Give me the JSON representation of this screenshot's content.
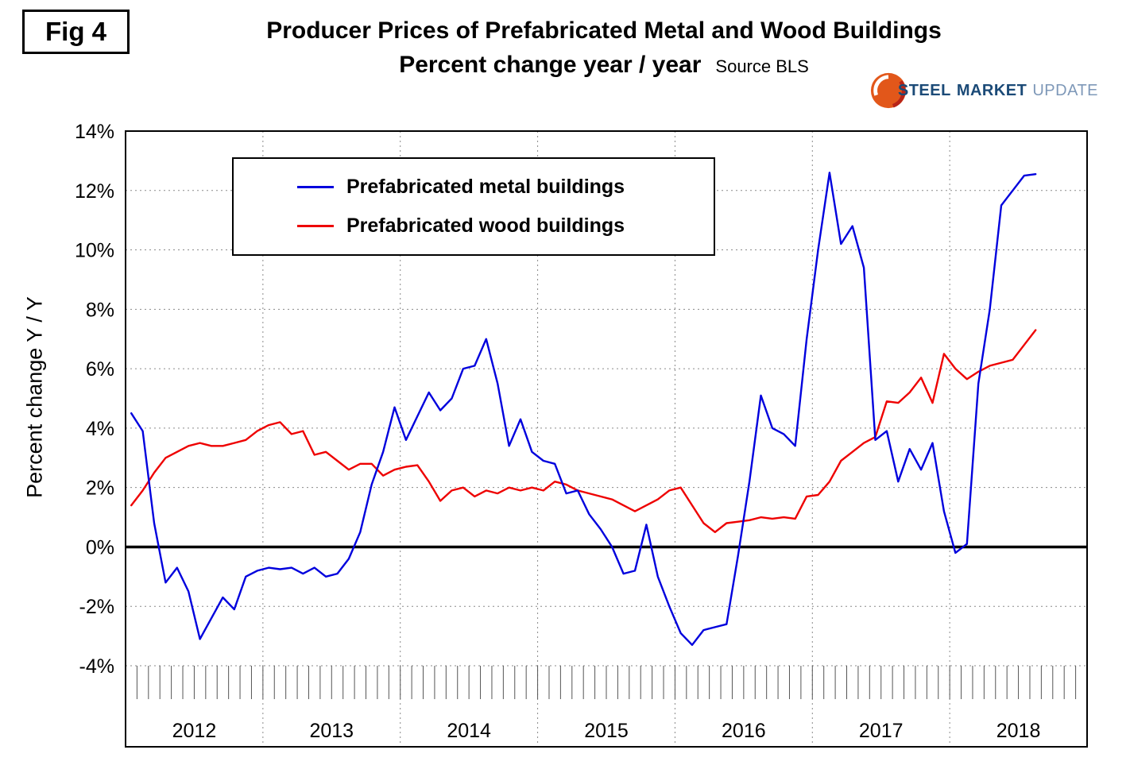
{
  "figure_label": "Fig 4",
  "title": "Producer Prices of Prefabricated Metal and Wood Buildings",
  "subtitle": "Percent change year / year",
  "source": "Source BLS",
  "y_axis_label": "Percent change Y / Y",
  "logo": {
    "steel": "STEEL",
    "market": "MARKET",
    "update": "UPDATE",
    "circle_color": "#e2571a"
  },
  "legend": [
    {
      "label": "Prefabricated metal buildings",
      "color": "#0000dd"
    },
    {
      "label": "Prefabricated wood buildings",
      "color": "#ee0000"
    }
  ],
  "chart_data": {
    "type": "line",
    "title": "Producer Prices of Prefabricated Metal and Wood Buildings",
    "subtitle": "Percent change year / year",
    "source": "Source BLS",
    "ylabel": "Percent change Y / Y",
    "ylim": [
      -4,
      14
    ],
    "y_tick_values": [
      14,
      12,
      10,
      8,
      6,
      4,
      2,
      0,
      -2,
      -4
    ],
    "y_tick_labels": [
      "14%",
      "12%",
      "10%",
      "8%",
      "6%",
      "4%",
      "2%",
      "0%",
      "-2%",
      "-4%"
    ],
    "x_frequency": "monthly",
    "x_range": [
      "2012-01",
      "2018-08"
    ],
    "x_year_labels": [
      "2012",
      "2013",
      "2014",
      "2015",
      "2016",
      "2017",
      "2018"
    ],
    "grid": "dotted",
    "zero_line": true,
    "legend_position": "top-left-inside",
    "series": [
      {
        "name": "Prefabricated metal buildings",
        "color": "#0000dd",
        "values": [
          4.5,
          3.9,
          0.8,
          -1.2,
          -0.7,
          -1.5,
          -3.1,
          -2.4,
          -1.7,
          -2.1,
          -1.0,
          -0.8,
          -0.7,
          -0.75,
          -0.7,
          -0.9,
          -0.7,
          -1.0,
          -0.9,
          -0.4,
          0.5,
          2.1,
          3.2,
          4.7,
          3.6,
          4.4,
          5.2,
          4.6,
          5.0,
          6.0,
          6.1,
          7.0,
          5.5,
          3.4,
          4.3,
          3.2,
          2.9,
          2.8,
          1.8,
          1.9,
          1.1,
          0.6,
          0.0,
          -0.9,
          -0.8,
          0.75,
          -1.0,
          -2.0,
          -2.9,
          -3.3,
          -2.8,
          -2.7,
          -2.6,
          -0.3,
          2.2,
          5.1,
          4.0,
          3.8,
          3.4,
          7.0,
          10.0,
          12.6,
          10.2,
          10.8,
          9.4,
          3.6,
          3.9,
          2.2,
          3.3,
          2.6,
          3.5,
          1.2,
          -0.2,
          0.1,
          5.5,
          8.0,
          11.5,
          12.0,
          12.5,
          12.55
        ]
      },
      {
        "name": "Prefabricated wood buildings",
        "color": "#ee0000",
        "values": [
          1.4,
          1.9,
          2.5,
          3.0,
          3.2,
          3.4,
          3.5,
          3.4,
          3.4,
          3.5,
          3.6,
          3.9,
          4.1,
          4.2,
          3.8,
          3.9,
          3.1,
          3.2,
          2.9,
          2.6,
          2.8,
          2.8,
          2.4,
          2.6,
          2.7,
          2.75,
          2.2,
          1.55,
          1.9,
          2.0,
          1.7,
          1.9,
          1.8,
          2.0,
          1.9,
          2.0,
          1.9,
          2.2,
          2.1,
          1.9,
          1.8,
          1.7,
          1.6,
          1.4,
          1.2,
          1.4,
          1.6,
          1.9,
          2.0,
          1.4,
          0.8,
          0.5,
          0.8,
          0.85,
          0.9,
          1.0,
          0.95,
          1.0,
          0.95,
          1.7,
          1.75,
          2.2,
          2.9,
          3.2,
          3.5,
          3.7,
          4.9,
          4.85,
          5.2,
          5.7,
          4.85,
          6.5,
          6.0,
          5.65,
          5.9,
          6.1,
          6.2,
          6.3,
          6.8,
          7.3
        ]
      }
    ]
  }
}
